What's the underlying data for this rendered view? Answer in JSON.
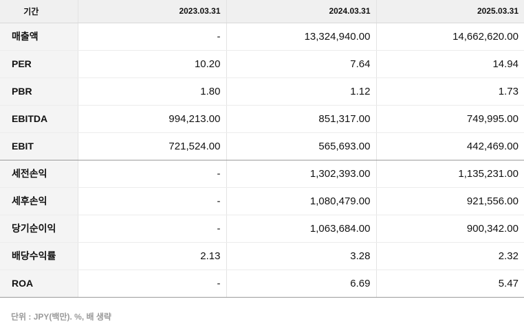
{
  "table": {
    "header_label": "기간",
    "periods": [
      "2023.03.31",
      "2024.03.31",
      "2025.03.31"
    ],
    "rows": [
      {
        "label": "매출액",
        "values": [
          "-",
          "13,324,940.00",
          "14,662,620.00"
        ]
      },
      {
        "label": "PER",
        "values": [
          "10.20",
          "7.64",
          "14.94"
        ]
      },
      {
        "label": "PBR",
        "values": [
          "1.80",
          "1.12",
          "1.73"
        ]
      },
      {
        "label": "EBITDA",
        "values": [
          "994,213.00",
          "851,317.00",
          "749,995.00"
        ]
      },
      {
        "label": "EBIT",
        "values": [
          "721,524.00",
          "565,693.00",
          "442,469.00"
        ]
      },
      {
        "label": "세전손익",
        "values": [
          "-",
          "1,302,393.00",
          "1,135,231.00"
        ]
      },
      {
        "label": "세후손익",
        "values": [
          "-",
          "1,080,479.00",
          "921,556.00"
        ]
      },
      {
        "label": "당기순이익",
        "values": [
          "-",
          "1,063,684.00",
          "900,342.00"
        ]
      },
      {
        "label": "배당수익률",
        "values": [
          "2.13",
          "3.28",
          "2.32"
        ]
      },
      {
        "label": "ROA",
        "values": [
          "-",
          "6.69",
          "5.47"
        ]
      }
    ]
  },
  "footnote": "단위 : JPY(백만). %, 배 생략"
}
